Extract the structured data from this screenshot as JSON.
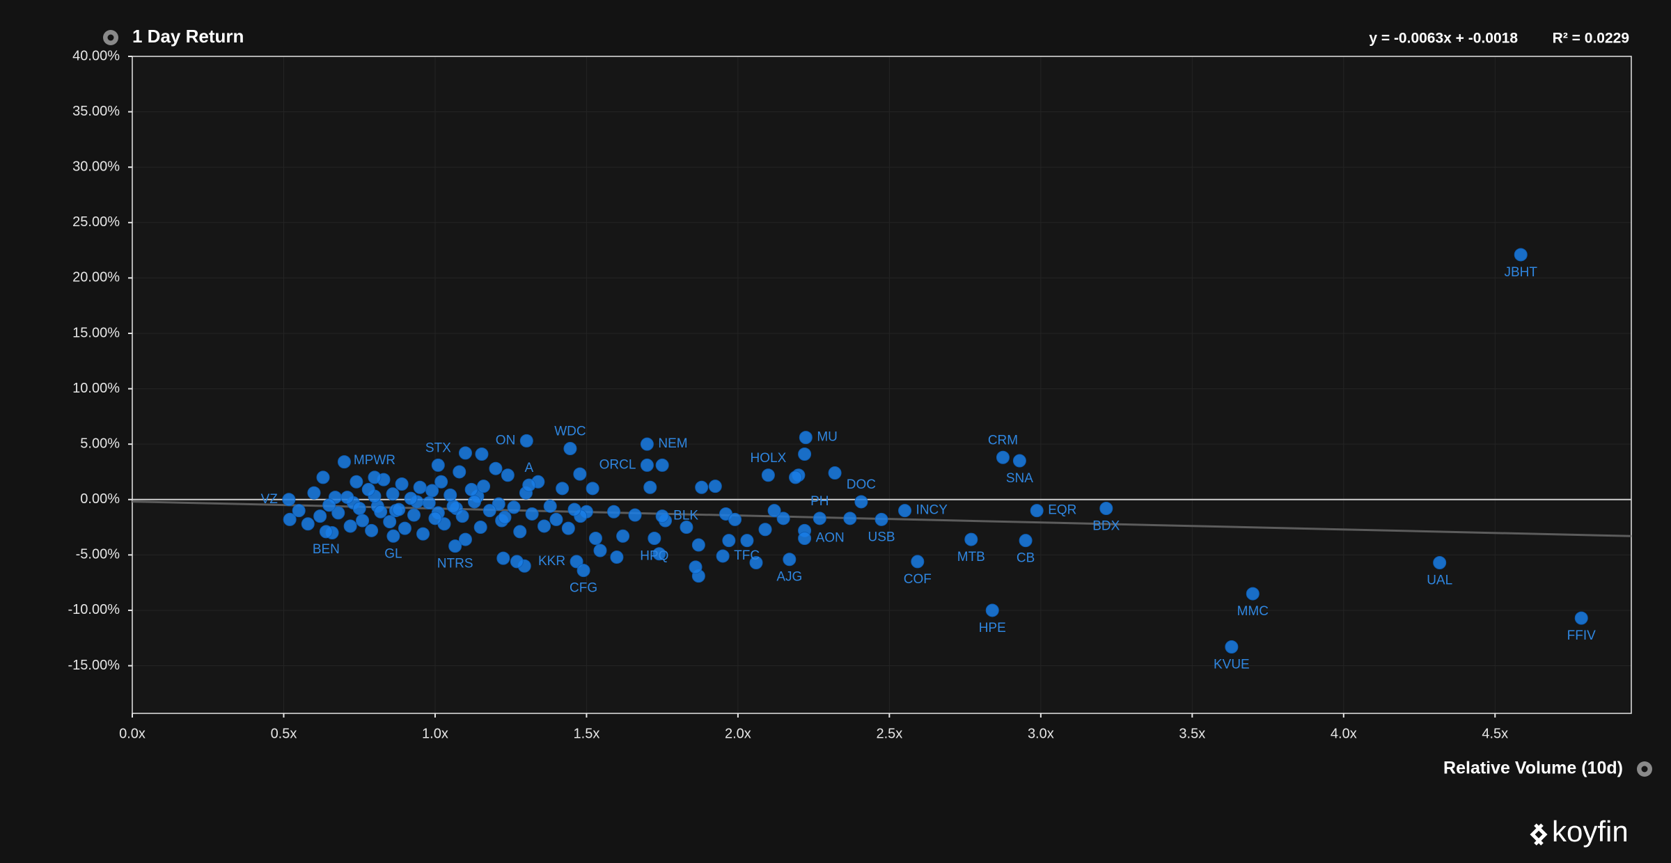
{
  "chart_data": {
    "type": "scatter",
    "title": "1 Day Return",
    "equation": "y = -0.0063x + -0.0018",
    "r_squared": "R² = 0.0229",
    "x_label": "Relative Volume (10d)",
    "brand": "koyfin",
    "color": "#1a7ee6",
    "label_color": "#2f86e0",
    "grid": true,
    "xlim": [
      0,
      4.95
    ],
    "ylim": [
      -19.3,
      40
    ],
    "xticks": [
      {
        "value": 0,
        "label": "0.0x"
      },
      {
        "value": 0.5,
        "label": "0.5x"
      },
      {
        "value": 1,
        "label": "1.0x"
      },
      {
        "value": 1.5,
        "label": "1.5x"
      },
      {
        "value": 2,
        "label": "2.0x"
      },
      {
        "value": 2.5,
        "label": "2.5x"
      },
      {
        "value": 3,
        "label": "3.0x"
      },
      {
        "value": 3.5,
        "label": "3.5x"
      },
      {
        "value": 4,
        "label": "4.0x"
      },
      {
        "value": 4.5,
        "label": "4.5x"
      }
    ],
    "yticks": [
      {
        "value": 40,
        "label": "40.00%"
      },
      {
        "value": 35,
        "label": "35.00%"
      },
      {
        "value": 30,
        "label": "30.00%"
      },
      {
        "value": 25,
        "label": "25.00%"
      },
      {
        "value": 20,
        "label": "20.00%"
      },
      {
        "value": 15,
        "label": "15.00%"
      },
      {
        "value": 10,
        "label": "10.00%"
      },
      {
        "value": 5,
        "label": "5.00%"
      },
      {
        "value": 0,
        "label": "0.00%"
      },
      {
        "value": -5,
        "label": "-5.00%"
      },
      {
        "value": -10,
        "label": "-10.00%"
      },
      {
        "value": -15,
        "label": "-15.00%"
      }
    ],
    "trendline": {
      "x": [
        0,
        4.95
      ],
      "y": [
        -0.18,
        -3.3
      ]
    },
    "x": [
      4.585,
      4.785,
      4.317,
      3.7,
      3.63,
      2.84,
      3.216,
      2.987,
      2.95,
      2.93,
      2.875,
      2.77,
      2.593,
      2.551,
      2.474,
      2.407,
      2.224,
      2.1,
      2.27,
      2.22,
      2.17,
      1.95,
      1.724,
      1.75,
      1.7,
      1.7,
      1.49,
      1.467,
      1.446,
      1.302,
      1.31,
      1.066,
      1.01,
      0.8,
      0.862,
      0.64,
      0.517,
      1.88,
      1.925,
      1.87,
      1.86,
      1.87,
      1.97,
      2.03,
      2.06,
      2.09,
      2.12,
      2.15,
      2.19,
      2.2,
      2.22,
      2.32,
      2.37,
      2.22,
      1.99,
      1.96,
      1.83,
      1.76,
      1.71,
      1.75,
      1.545,
      1.6,
      1.62,
      1.59,
      1.53,
      1.66,
      1.74,
      1.225,
      1.27,
      1.295,
      1.154,
      1.1,
      1.478,
      1.52,
      0.52,
      0.55,
      0.58,
      0.6,
      0.62,
      0.63,
      0.65,
      0.66,
      0.68,
      0.7,
      0.71,
      0.72,
      0.74,
      0.75,
      0.76,
      0.78,
      0.79,
      0.8,
      0.82,
      0.83,
      0.85,
      0.86,
      0.88,
      0.89,
      0.9,
      0.92,
      0.93,
      0.95,
      0.96,
      0.98,
      0.99,
      1.0,
      1.02,
      1.03,
      1.05,
      1.06,
      1.08,
      1.09,
      1.1,
      1.12,
      1.13,
      1.15,
      1.16,
      1.18,
      1.2,
      1.21,
      1.23,
      1.24,
      1.26,
      1.28,
      1.3,
      1.32,
      1.34,
      1.36,
      1.38,
      1.4,
      1.42,
      1.44,
      1.46,
      1.48,
      1.5,
      0.67,
      0.73,
      0.81,
      0.87,
      0.94,
      1.01,
      1.07,
      1.14,
      1.22
    ],
    "y": [
      22.1,
      -10.7,
      -5.7,
      -8.5,
      -13.3,
      -10.0,
      -0.8,
      -1.0,
      -3.7,
      3.5,
      3.8,
      -3.6,
      -5.6,
      -1.0,
      -1.8,
      -0.2,
      5.6,
      2.2,
      -1.7,
      -3.5,
      -5.4,
      -5.1,
      -3.5,
      -1.5,
      5.0,
      3.1,
      -6.4,
      -5.6,
      4.6,
      5.3,
      1.3,
      -4.2,
      3.1,
      2.0,
      -3.3,
      -2.9,
      0.0,
      1.1,
      1.2,
      -4.1,
      -6.1,
      -6.9,
      -3.7,
      -3.7,
      -5.7,
      -2.7,
      -1.0,
      -1.7,
      2.0,
      2.2,
      4.1,
      2.4,
      -1.7,
      -2.8,
      -1.8,
      -1.3,
      -2.5,
      -1.9,
      1.1,
      3.1,
      -4.6,
      -5.2,
      -3.3,
      -1.1,
      -3.5,
      -1.4,
      -4.9,
      -5.3,
      -5.6,
      -6.0,
      4.1,
      4.2,
      2.3,
      1.0,
      -1.8,
      -1.0,
      -2.2,
      0.6,
      -1.5,
      2.0,
      -0.5,
      -3.0,
      -1.2,
      3.4,
      0.2,
      -2.4,
      1.6,
      -0.8,
      -1.9,
      0.9,
      -2.8,
      0.3,
      -1.1,
      1.8,
      -2.0,
      0.5,
      -0.9,
      1.4,
      -2.6,
      0.1,
      -1.4,
      1.1,
      -3.1,
      -0.3,
      0.8,
      -1.7,
      1.6,
      -2.2,
      0.4,
      -0.6,
      2.5,
      -1.5,
      -3.6,
      0.9,
      -0.2,
      -2.5,
      1.2,
      -1.0,
      2.8,
      -0.4,
      -1.6,
      2.2,
      -0.7,
      -2.9,
      0.6,
      -1.3,
      1.6,
      -2.4,
      -0.6,
      -1.8,
      1.0,
      -2.6,
      -0.9,
      -1.5,
      -1.1,
      0.2,
      -0.3,
      -0.6,
      -1.0,
      -0.2,
      -1.2,
      -0.8,
      0.3,
      -1.9
    ],
    "point_labels": [
      "JBHT",
      "FFIV",
      "UAL",
      "MMC",
      "KVUE",
      "HPE",
      "BDX",
      "EQR",
      "CB",
      "SNA",
      "CRM",
      "MTB",
      "COF",
      "INCY",
      "USB",
      "DOC",
      "MU",
      "HOLX",
      "PH",
      "AON",
      "AJG",
      "TFC",
      "HPQ",
      "BLK",
      "NEM",
      "ORCL",
      "CFG",
      "KKR",
      "WDC",
      "ON",
      "A",
      "NTRS",
      "STX",
      "MPWR",
      "GL",
      "BEN",
      "VZ",
      null,
      null,
      null,
      null,
      null,
      null,
      null,
      null,
      null,
      null,
      null,
      null,
      null,
      null,
      null,
      null,
      null,
      null,
      null,
      null,
      null,
      null,
      null,
      null,
      null,
      null,
      null,
      null,
      null,
      null,
      null,
      null,
      null,
      null,
      null,
      null,
      null,
      null,
      null,
      null,
      null,
      null,
      null,
      null,
      null,
      null,
      null,
      null,
      null,
      null,
      null,
      null,
      null,
      null,
      null,
      null,
      null,
      null,
      null,
      null,
      null,
      null,
      null,
      null,
      null,
      null,
      null,
      null,
      null,
      null,
      null,
      null,
      null,
      null,
      null,
      null,
      null,
      null,
      null,
      null,
      null,
      null,
      null,
      null,
      null,
      null,
      null,
      null,
      null,
      null,
      null,
      null,
      null,
      null,
      null,
      null,
      null,
      null,
      null,
      null,
      null,
      null,
      null,
      null,
      null,
      null,
      null
    ]
  }
}
